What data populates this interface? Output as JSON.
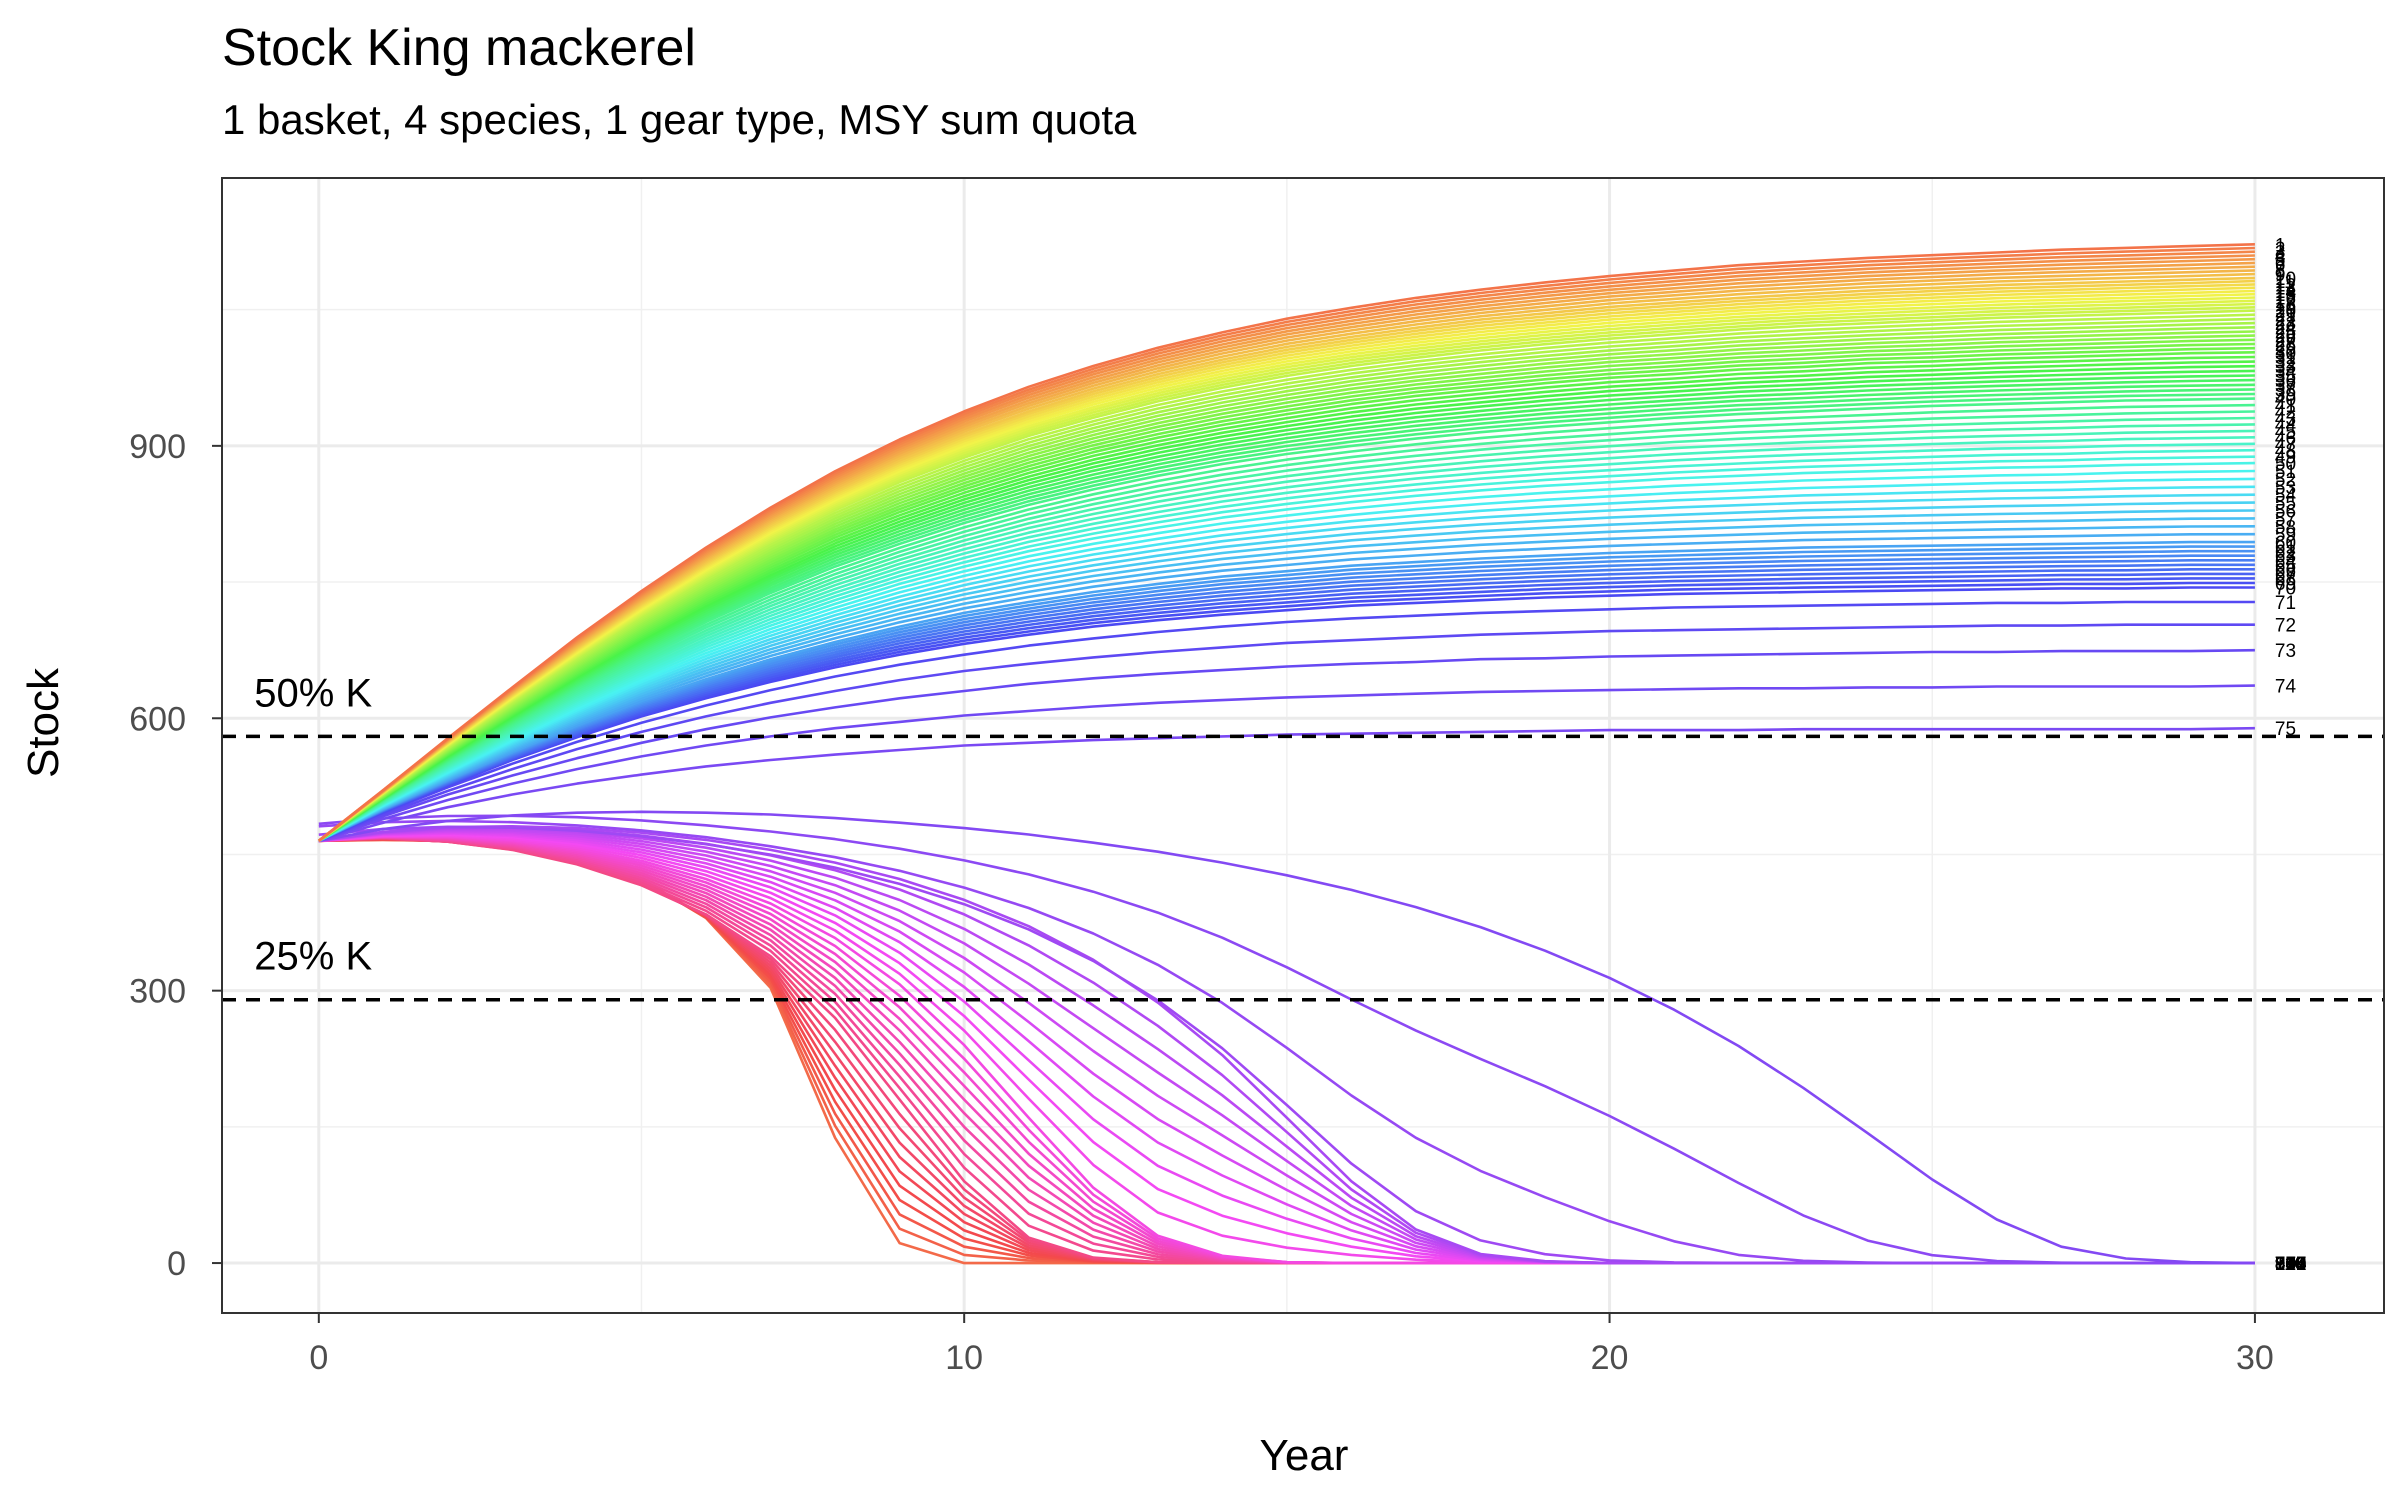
{
  "chart_data": {
    "type": "line",
    "title": "Stock King mackerel",
    "subtitle": "1 basket, 4 species, 1 gear type, MSY sum quota",
    "xlabel": "Year",
    "ylabel": "Stock",
    "xlim": [
      -1.5,
      32
    ],
    "ylim": [
      -55,
      1195
    ],
    "x_ticks": [
      0,
      10,
      20,
      30
    ],
    "y_ticks": [
      0,
      300,
      600,
      900
    ],
    "grid": true,
    "n_runs": 110,
    "x": [
      0,
      1,
      2,
      3,
      4,
      5,
      6,
      7,
      8,
      9,
      10,
      11,
      12,
      13,
      14,
      15,
      16,
      17,
      18,
      19,
      20,
      21,
      22,
      23,
      24,
      25,
      26,
      27,
      28,
      29,
      30
    ],
    "reference_lines": [
      {
        "label": "50% K",
        "y": 580,
        "style": "dashed"
      },
      {
        "label": "25% K",
        "y": 290,
        "style": "dashed"
      }
    ],
    "series": [
      {
        "name": "1",
        "values": [
          465,
          521,
          578,
          634,
          689,
          740,
          788,
          832,
          872,
          907,
          938,
          965,
          988,
          1008,
          1025,
          1040,
          1052,
          1063,
          1072,
          1080,
          1087,
          1093,
          1099,
          1103,
          1107,
          1110,
          1113,
          1116,
          1118,
          1120,
          1122
        ]
      },
      {
        "name": "10",
        "values": [
          465,
          519,
          574,
          627,
          678,
          727,
          772,
          814,
          851,
          884,
          913,
          938,
          960,
          979,
          995,
          1009,
          1020,
          1030,
          1039,
          1046,
          1053,
          1058,
          1063,
          1067,
          1071,
          1074,
          1077,
          1079,
          1081,
          1083,
          1085
        ]
      },
      {
        "name": "20",
        "values": [
          465,
          517,
          569,
          619,
          667,
          713,
          755,
          794,
          829,
          860,
          887,
          911,
          931,
          949,
          964,
          977,
          988,
          997,
          1005,
          1012,
          1018,
          1023,
          1028,
          1032,
          1035,
          1038,
          1041,
          1043,
          1045,
          1047,
          1049
        ]
      },
      {
        "name": "30",
        "values": [
          465,
          513,
          561,
          606,
          650,
          692,
          731,
          766,
          799,
          827,
          852,
          874,
          893,
          909,
          923,
          935,
          946,
          955,
          962,
          969,
          975,
          979,
          984,
          987,
          991,
          993,
          996,
          998,
          1000,
          1002,
          1003
        ]
      },
      {
        "name": "40",
        "values": [
          465,
          510,
          553,
          594,
          634,
          671,
          706,
          738,
          767,
          792,
          815,
          835,
          852,
          867,
          880,
          891,
          900,
          908,
          915,
          921,
          926,
          931,
          935,
          938,
          941,
          944,
          946,
          948,
          950,
          951,
          952
        ]
      },
      {
        "name": "50",
        "values": [
          465,
          505,
          542,
          578,
          613,
          645,
          675,
          702,
          726,
          748,
          767,
          784,
          798,
          810,
          821,
          830,
          838,
          845,
          851,
          856,
          860,
          864,
          867,
          870,
          872,
          874,
          876,
          877,
          879,
          880,
          881
        ]
      },
      {
        "name": "60",
        "values": [
          465,
          500,
          532,
          563,
          592,
          619,
          643,
          665,
          684,
          701,
          716,
          728,
          739,
          748,
          756,
          762,
          768,
          772,
          776,
          779,
          782,
          784,
          786,
          788,
          789,
          790,
          791,
          792,
          793,
          794,
          794
        ]
      },
      {
        "name": "70",
        "values": [
          465,
          497,
          526,
          554,
          579,
          602,
          622,
          640,
          656,
          670,
          682,
          692,
          701,
          708,
          714,
          719,
          724,
          727,
          730,
          733,
          735,
          737,
          738,
          739,
          740,
          741,
          742,
          743,
          743,
          744,
          744
        ]
      },
      {
        "name": "71",
        "values": [
          465,
          496,
          524,
          550,
          574,
          595,
          614,
          631,
          646,
          659,
          670,
          680,
          688,
          695,
          701,
          706,
          710,
          713,
          716,
          718,
          720,
          722,
          723,
          724,
          725,
          726,
          727,
          727,
          728,
          728,
          728
        ]
      },
      {
        "name": "72",
        "values": [
          465,
          494,
          520,
          544,
          566,
          585,
          602,
          617,
          630,
          642,
          652,
          660,
          667,
          673,
          678,
          683,
          686,
          689,
          692,
          694,
          696,
          697,
          698,
          699,
          700,
          701,
          702,
          702,
          703,
          703,
          703
        ]
      },
      {
        "name": "73",
        "values": [
          465,
          492,
          516,
          537,
          556,
          573,
          588,
          601,
          612,
          622,
          630,
          638,
          644,
          649,
          653,
          657,
          660,
          662,
          665,
          666,
          668,
          669,
          670,
          671,
          672,
          673,
          673,
          674,
          674,
          674,
          675
        ]
      },
      {
        "name": "74",
        "values": [
          465,
          489,
          510,
          528,
          544,
          558,
          570,
          580,
          589,
          596,
          603,
          608,
          613,
          617,
          620,
          623,
          625,
          627,
          629,
          630,
          631,
          632,
          633,
          633,
          634,
          634,
          635,
          635,
          635,
          635,
          636
        ]
      },
      {
        "name": "75",
        "values": [
          465,
          485,
          502,
          516,
          528,
          538,
          547,
          554,
          560,
          565,
          570,
          573,
          576,
          578,
          580,
          582,
          583,
          584,
          585,
          586,
          587,
          587,
          587,
          588,
          588,
          588,
          588,
          588,
          588,
          588,
          589
        ]
      },
      {
        "name": "76",
        "values": [
          465,
          478,
          487,
          493,
          496,
          497,
          496,
          494,
          490,
          485,
          479,
          472,
          463,
          453,
          441,
          427,
          411,
          392,
          370,
          344,
          314,
          279,
          239,
          193,
          143,
          92,
          48,
          18,
          5,
          1,
          0
        ]
      },
      {
        "name": "80",
        "values": [
          465,
          475,
          480,
          481,
          479,
          474,
          466,
          455,
          441,
          423,
          400,
          371,
          334,
          287,
          229,
          160,
          90,
          37,
          10,
          2,
          0,
          0,
          0,
          0,
          0,
          0,
          0,
          0,
          0,
          0,
          0
        ]
      },
      {
        "name": "90",
        "values": [
          465,
          470,
          470,
          466,
          457,
          443,
          423,
          396,
          358,
          307,
          240,
          160,
          83,
          30,
          8,
          1,
          0,
          0,
          0,
          0,
          0,
          0,
          0,
          0,
          0,
          0,
          0,
          0,
          0,
          0,
          0
        ]
      },
      {
        "name": "100",
        "values": [
          465,
          468,
          464,
          455,
          439,
          416,
          384,
          338,
          270,
          180,
          90,
          28,
          6,
          1,
          0,
          0,
          0,
          0,
          0,
          0,
          0,
          0,
          0,
          0,
          0,
          0,
          0,
          0,
          0,
          0,
          0
        ]
      },
      {
        "name": "110",
        "values": [
          465,
          466,
          465,
          458,
          445,
          423,
          380,
          303,
          138,
          22,
          0,
          0,
          0,
          0,
          0,
          0,
          0,
          0,
          0,
          0,
          0,
          0,
          0,
          0,
          0,
          0,
          0,
          0,
          0,
          0,
          0
        ]
      }
    ]
  }
}
